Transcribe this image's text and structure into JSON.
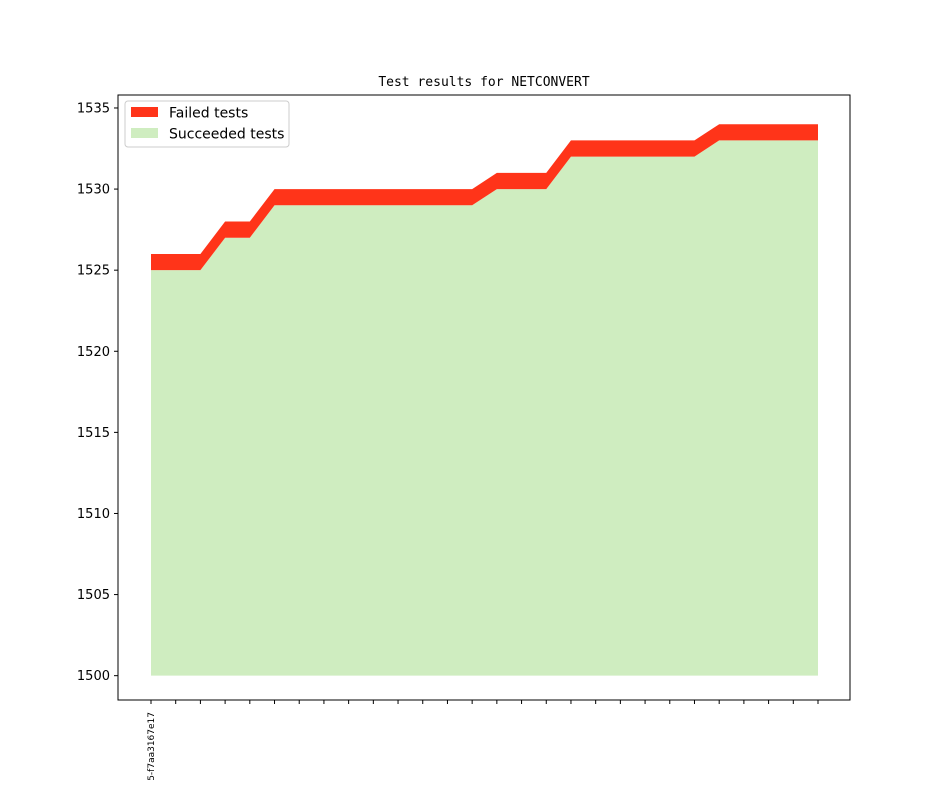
{
  "chart_data": {
    "type": "area",
    "title": "Test results for NETCONVERT",
    "xlabel": "",
    "ylabel": "",
    "ylim": [
      1498.5,
      1535.8
    ],
    "yticks": [
      1500,
      1505,
      1510,
      1515,
      1520,
      1525,
      1530,
      1535
    ],
    "x_count": 28,
    "x_tick_labels": [
      {
        "index": 0,
        "label": "5-f7aa3167e17"
      }
    ],
    "baseline": 1500,
    "series": [
      {
        "name": "Succeeded tests",
        "color": "#cfedc0",
        "values": [
          1525,
          1525,
          1525,
          1527,
          1527,
          1529,
          1529,
          1529,
          1529,
          1529,
          1529,
          1529,
          1529,
          1529,
          1530,
          1530,
          1530,
          1532,
          1532,
          1532,
          1532,
          1532,
          1532,
          1533,
          1533,
          1533,
          1533,
          1533
        ]
      },
      {
        "name": "Failed tests",
        "color": "#ff3419",
        "values": [
          1,
          1,
          1,
          1,
          1,
          1,
          1,
          1,
          1,
          1,
          1,
          1,
          1,
          1,
          1,
          1,
          1,
          1,
          1,
          1,
          1,
          1,
          1,
          1,
          1,
          1,
          1,
          1
        ]
      }
    ],
    "legend": {
      "position": "upper-left",
      "entries": [
        {
          "label": "Failed tests",
          "color": "#ff3419"
        },
        {
          "label": "Succeeded tests",
          "color": "#cfedc0"
        }
      ]
    },
    "grid": false
  }
}
